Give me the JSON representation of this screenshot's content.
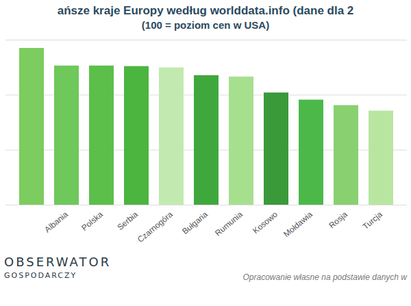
{
  "chart_data": {
    "type": "bar",
    "title": "ańsze kraje Europy według worlddata.info (dane dla 2",
    "subtitle": "(100 = poziom cen w USA)",
    "categories": [
      null,
      "Albania",
      "Polska",
      "Serbia",
      "Czarnogóra",
      "Bułgaria",
      "Rumunia",
      "Kosowo",
      "Mołdawia",
      "Rosja",
      "Turcja"
    ],
    "values": [
      57,
      50.6,
      50.6,
      50.4,
      49.9,
      47.1,
      46.6,
      40.8,
      38.2,
      36.2,
      34.2
    ],
    "colors": [
      "#7ccc5f",
      "#6fc85a",
      "#5cbf4a",
      "#4cb540",
      "#c2eab0",
      "#3fa83d",
      "#a6e08f",
      "#3a9a3a",
      "#4db84a",
      "#88d070",
      "#b8e6a0"
    ],
    "ylim": [
      0,
      60
    ],
    "yticks": [
      0,
      20,
      40,
      60
    ],
    "grid": true,
    "tick_labels": "x",
    "logo": [
      "OBSERWATOR",
      "GOSPODARCZY"
    ],
    "source": "Opracowanie własne na podstawie danych w"
  }
}
